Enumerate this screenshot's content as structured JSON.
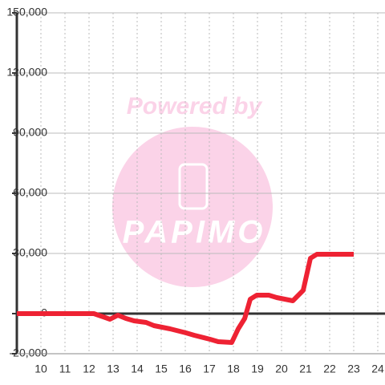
{
  "chart_data": {
    "type": "line",
    "watermark": [
      "Powered by",
      "PAPIMO"
    ],
    "x": [
      9,
      12.2,
      12.87,
      13.2,
      13.53,
      13.87,
      14.37,
      14.7,
      15.37,
      16.03,
      16.37,
      17.03,
      17.37,
      17.93,
      18.2,
      18.47,
      18.7,
      18.97,
      19.47,
      19.8,
      20.47,
      20.9,
      21.2,
      21.47,
      23
    ],
    "series": [
      {
        "color": "#ee2233",
        "values": [
          0,
          0,
          -2800,
          -800,
          -2400,
          -3600,
          -4400,
          -6000,
          -7600,
          -9600,
          -10800,
          -12800,
          -14000,
          -14400,
          -7600,
          -2400,
          7200,
          9200,
          9200,
          8000,
          6400,
          11600,
          27600,
          29600,
          29600
        ]
      }
    ],
    "xlim": [
      9,
      24.3
    ],
    "xticks": [
      10,
      11,
      12,
      13,
      14,
      15,
      16,
      17,
      18,
      19,
      20,
      21,
      22,
      23,
      24
    ],
    "ylim": [
      -20000,
      150000
    ],
    "yticks": [
      {
        "value": -20000,
        "label": "-20,000"
      },
      0,
      {
        "value": 30000,
        "label": "30,000"
      },
      {
        "value": 60000,
        "label": "60,000"
      },
      {
        "value": 90000,
        "label": "90,000"
      },
      {
        "value": 120000,
        "label": "120,000"
      },
      {
        "value": 150000,
        "label": "150,000"
      }
    ],
    "grid": true
  }
}
